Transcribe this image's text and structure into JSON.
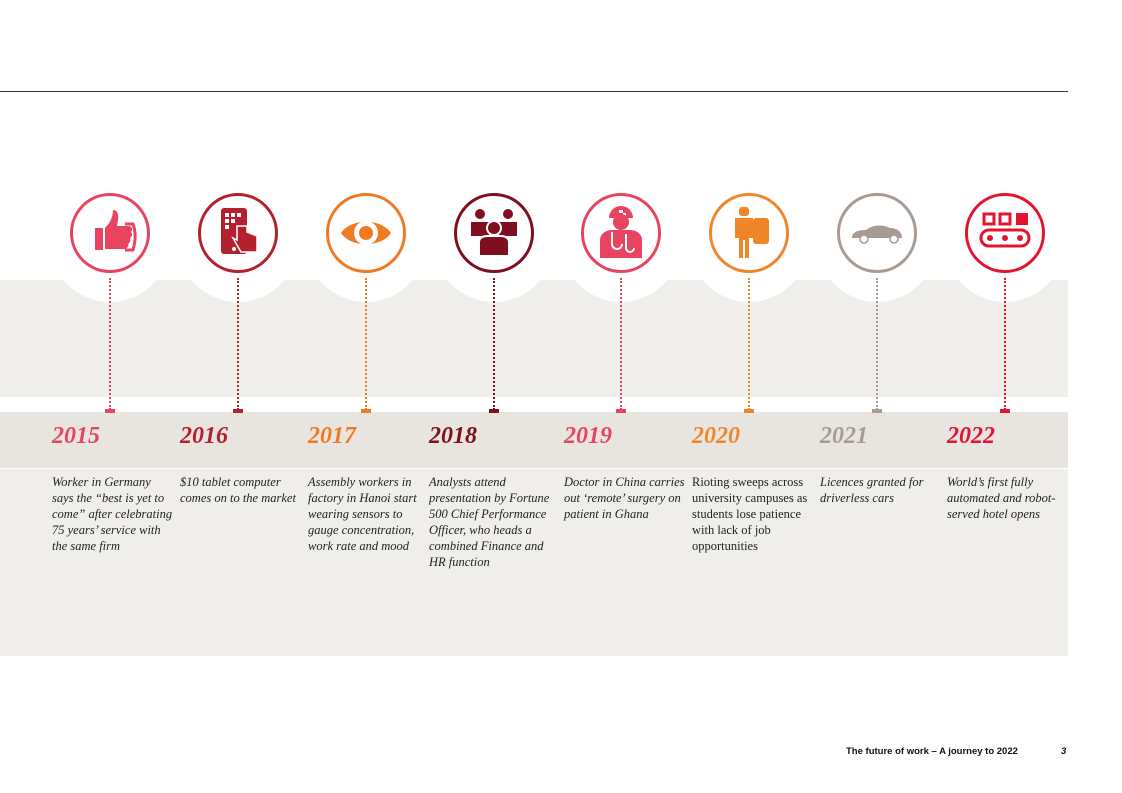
{
  "timeline": [
    {
      "year": "2015",
      "color": "#e8435f",
      "icon": "thumbs-up-icon",
      "text": "Worker in Germany says the “best is yet to come” after celebrating 75 years’ service with the same firm"
    },
    {
      "year": "2016",
      "color": "#b5202e",
      "icon": "tablet-touch-icon",
      "text": "$10 tablet computer comes on to the market"
    },
    {
      "year": "2017",
      "color": "#f07a22",
      "icon": "eye-icon",
      "text": "Assembly workers in factory in Hanoi start wearing sensors to gauge concentration, work rate and mood"
    },
    {
      "year": "2018",
      "color": "#7f0e1e",
      "icon": "group-people-icon",
      "text": "Analysts attend presentation by Fortune 500 Chief Performance Officer, who heads a combined Finance and HR function"
    },
    {
      "year": "2019",
      "color": "#e8435f",
      "icon": "doctor-icon",
      "text": "Doctor in China carries out ‘remote’ surgery on patient in Ghana"
    },
    {
      "year": "2020",
      "color": "#f0862a",
      "icon": "student-backpack-icon",
      "text": "Rioting sweeps across university campuses as students lose patience with lack of job opportunities"
    },
    {
      "year": "2021",
      "color": "#a89b94",
      "icon": "car-icon",
      "text": "Licences granted for driverless cars"
    },
    {
      "year": "2022",
      "color": "#e3152e",
      "icon": "conveyor-robot-icon",
      "text": "World’s first fully automated and robot-served hotel opens"
    }
  ],
  "footer": {
    "title": "The future of work – A journey to 2022",
    "page": "3"
  }
}
